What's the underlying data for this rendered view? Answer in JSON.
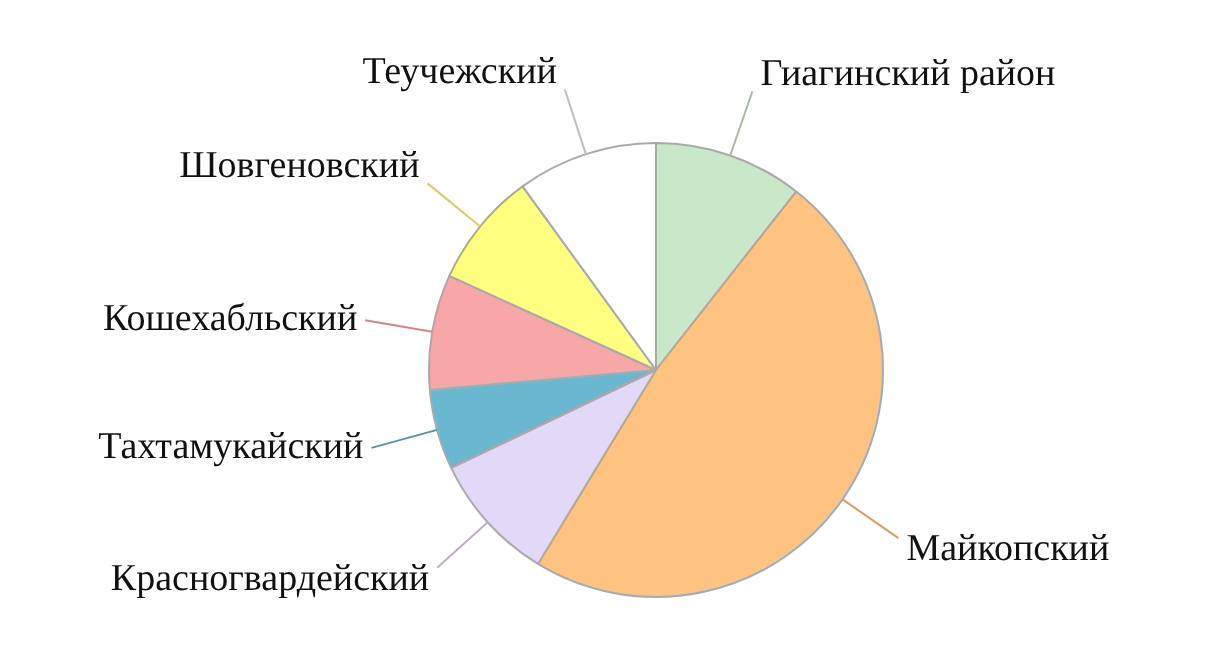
{
  "chart_data": {
    "type": "pie",
    "categories": [
      "Гиагинский район",
      "Майкопский",
      "Красногвардейский",
      "Тахтамукайский",
      "Кошехабльский",
      "Шовгеновский",
      "Теучежский"
    ],
    "values": [
      10.6,
      48.1,
      9.2,
      5.7,
      8.2,
      8.2,
      10.0
    ],
    "colors": [
      "#c9e8c9",
      "#fec380",
      "#e2d8f8",
      "#6ab8cf",
      "#f7a7a7",
      "#ffff80",
      "#ffffff"
    ]
  }
}
